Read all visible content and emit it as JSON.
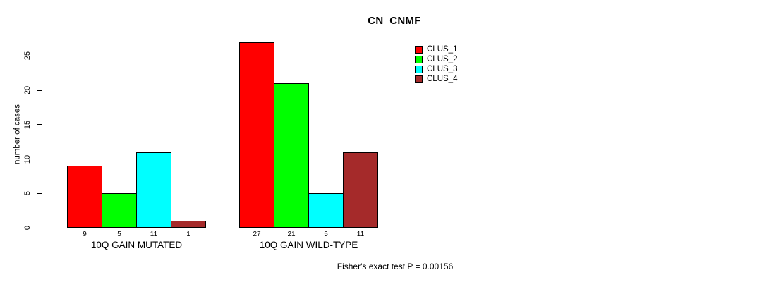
{
  "chart_data": {
    "type": "bar",
    "title": "CN_CNMF",
    "ylabel": "number of cases",
    "footnote": "Fisher's exact test P = 0.00156",
    "categories": [
      "10Q GAIN MUTATED",
      "10Q GAIN WILD-TYPE"
    ],
    "series": [
      {
        "name": "CLUS_1",
        "color": "#FF0000",
        "values": [
          9,
          27
        ]
      },
      {
        "name": "CLUS_2",
        "color": "#00FF00",
        "values": [
          5,
          21
        ]
      },
      {
        "name": "CLUS_3",
        "color": "#00FFFF",
        "values": [
          11,
          5
        ]
      },
      {
        "name": "CLUS_4",
        "color": "#A52A2A",
        "values": [
          1,
          11
        ]
      }
    ],
    "bar_value_labels": [
      [
        9,
        5,
        11,
        1
      ],
      [
        27,
        21,
        5,
        11
      ]
    ],
    "yticks": [
      0,
      5,
      10,
      15,
      20,
      25
    ],
    "ylim": [
      0,
      25
    ],
    "grid": false,
    "legend_position": "top-right",
    "bar_border_color": "#000000",
    "background_color": "#FFFFFF",
    "axis_color": "#000000"
  }
}
